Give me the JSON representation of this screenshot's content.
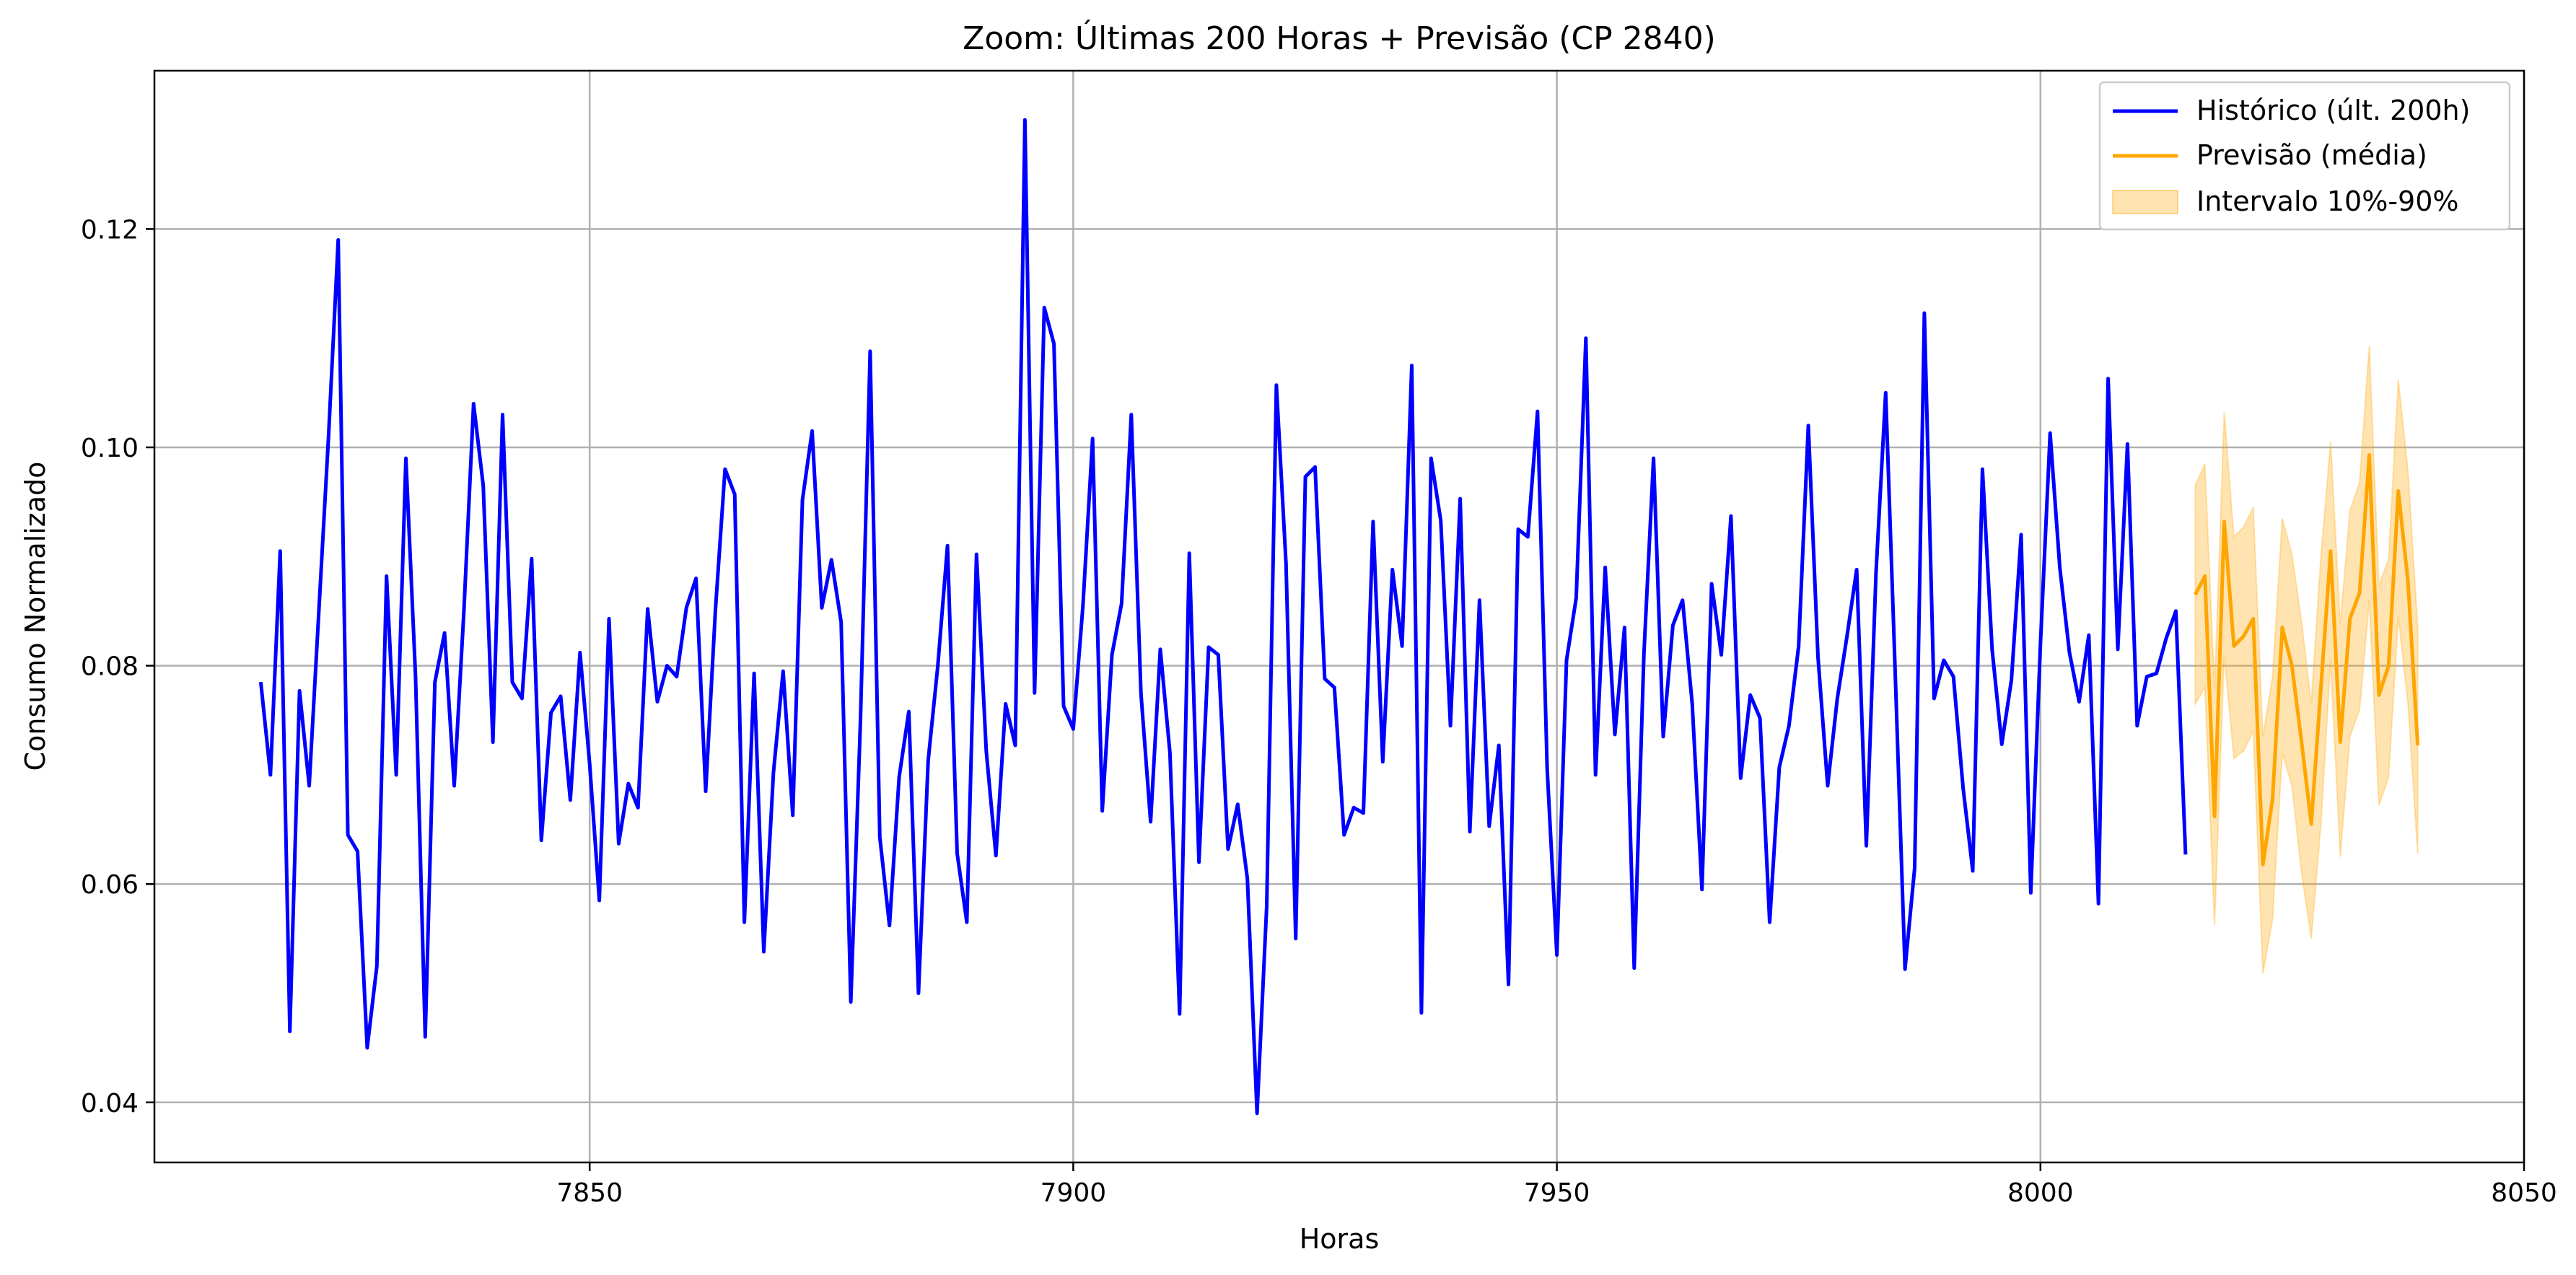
{
  "chart_data": {
    "type": "line",
    "title": "Zoom: Últimas 200 Horas + Previsão (CP 2840)",
    "xlabel": "Horas",
    "ylabel": "Consumo Normalizado",
    "xlim": [
      7805,
      8050
    ],
    "ylim": [
      0.0345,
      0.1345
    ],
    "xticks": [
      7850,
      7900,
      7950,
      8000,
      8050
    ],
    "yticks": [
      0.04,
      0.06,
      0.08,
      0.1,
      0.12
    ],
    "xtick_labels": [
      "7850",
      "7900",
      "7950",
      "8000",
      "8050"
    ],
    "ytick_labels": [
      "0.04",
      "0.06",
      "0.08",
      "0.10",
      "0.12"
    ],
    "grid": true,
    "legend_position": "top-right",
    "series": [
      {
        "name": "Histórico (últ. 200h)",
        "color": "#0000ff",
        "x_start": 7816,
        "values": [
          0.0785,
          0.07,
          0.0905,
          0.0465,
          0.0777,
          0.069,
          0.085,
          0.101,
          0.119,
          0.0645,
          0.063,
          0.045,
          0.0525,
          0.0882,
          0.07,
          0.099,
          0.079,
          0.046,
          0.0785,
          0.083,
          0.069,
          0.085,
          0.104,
          0.0965,
          0.073,
          0.103,
          0.0785,
          0.077,
          0.0898,
          0.064,
          0.0757,
          0.0772,
          0.0677,
          0.0812,
          0.071,
          0.0585,
          0.0843,
          0.0637,
          0.0692,
          0.067,
          0.0852,
          0.0767,
          0.08,
          0.079,
          0.0853,
          0.088,
          0.0685,
          0.085,
          0.098,
          0.0957,
          0.0565,
          0.0793,
          0.0538,
          0.0702,
          0.0795,
          0.0663,
          0.0952,
          0.1015,
          0.0853,
          0.0897,
          0.084,
          0.0492,
          0.075,
          0.1088,
          0.0643,
          0.0562,
          0.0698,
          0.0758,
          0.05,
          0.0713,
          0.08,
          0.091,
          0.0628,
          0.0565,
          0.0902,
          0.0722,
          0.0626,
          0.0765,
          0.0727,
          0.13,
          0.0775,
          0.1128,
          0.1095,
          0.0763,
          0.0742,
          0.0855,
          0.1008,
          0.0667,
          0.081,
          0.0857,
          0.103,
          0.0775,
          0.0657,
          0.0815,
          0.072,
          0.0481,
          0.0903,
          0.062,
          0.0817,
          0.081,
          0.0632,
          0.0673,
          0.0605,
          0.039,
          0.058,
          0.1057,
          0.0893,
          0.055,
          0.0973,
          0.0982,
          0.0788,
          0.078,
          0.0645,
          0.067,
          0.0665,
          0.0932,
          0.0712,
          0.0888,
          0.0818,
          0.1075,
          0.0482,
          0.099,
          0.0933,
          0.0745,
          0.0953,
          0.0648,
          0.086,
          0.0653,
          0.0727,
          0.0508,
          0.0925,
          0.0918,
          0.1033,
          0.0705,
          0.0535,
          0.0805,
          0.0862,
          0.11,
          0.07,
          0.089,
          0.0737,
          0.0835,
          0.0523,
          0.081,
          0.099,
          0.0735,
          0.0837,
          0.086,
          0.0765,
          0.0595,
          0.0875,
          0.081,
          0.0937,
          0.0697,
          0.0773,
          0.0752,
          0.0565,
          0.0707,
          0.0745,
          0.0818,
          0.102,
          0.0808,
          0.069,
          0.077,
          0.0827,
          0.0888,
          0.0635,
          0.0885,
          0.105,
          0.079,
          0.0522,
          0.0615,
          0.1123,
          0.077,
          0.0805,
          0.079,
          0.0688,
          0.0612,
          0.098,
          0.0815,
          0.0728,
          0.0787,
          0.092,
          0.0592,
          0.082,
          0.1013,
          0.089,
          0.0812,
          0.0767,
          0.0828,
          0.0582,
          0.1063,
          0.0815,
          0.1003,
          0.0745,
          0.079,
          0.0793,
          0.0825,
          0.085,
          0.0627
        ]
      },
      {
        "name": "Previsão (média)",
        "color": "#ffa500",
        "x_start": 8016,
        "values": [
          0.0865,
          0.0882,
          0.0662,
          0.0932,
          0.0818,
          0.0827,
          0.0843,
          0.0618,
          0.0678,
          0.0835,
          0.08,
          0.073,
          0.0655,
          0.078,
          0.0905,
          0.073,
          0.0843,
          0.0867,
          0.0993,
          0.0773,
          0.08,
          0.096,
          0.0877,
          0.0727
        ]
      }
    ],
    "band": {
      "name": "Intervalo 10%-90%",
      "color": "#ffa500",
      "opacity": 0.3,
      "x_start": 8016,
      "lower": [
        0.0765,
        0.078,
        0.0562,
        0.081,
        0.0715,
        0.0722,
        0.074,
        0.0518,
        0.0568,
        0.072,
        0.069,
        0.061,
        0.055,
        0.0655,
        0.0805,
        0.0625,
        0.0735,
        0.076,
        0.086,
        0.0672,
        0.0698,
        0.0845,
        0.0765,
        0.0628
      ],
      "upper": [
        0.0965,
        0.0985,
        0.0778,
        0.1032,
        0.0918,
        0.0927,
        0.0945,
        0.0735,
        0.079,
        0.0935,
        0.0902,
        0.084,
        0.0765,
        0.09,
        0.1005,
        0.0838,
        0.0942,
        0.0968,
        0.1093,
        0.0873,
        0.0898,
        0.1062,
        0.0978,
        0.0835
      ]
    }
  }
}
